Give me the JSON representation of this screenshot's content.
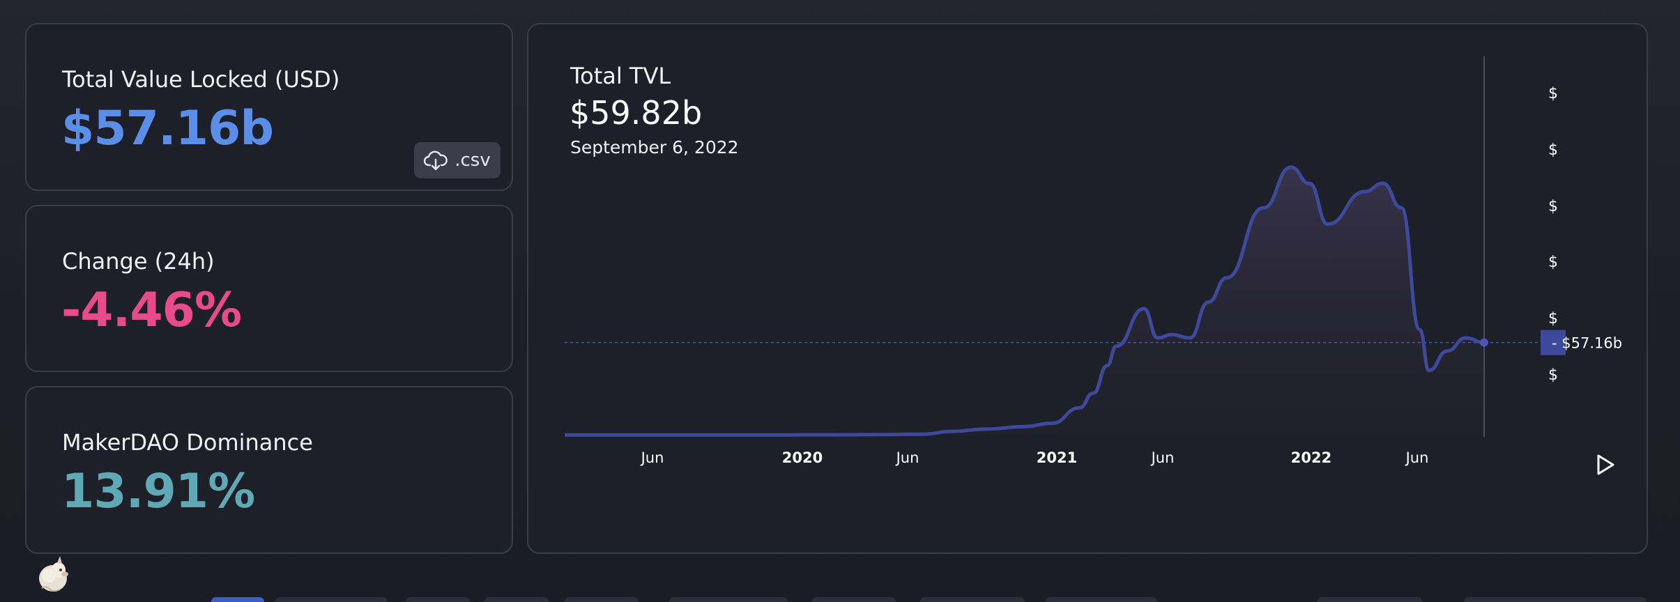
{
  "stats": {
    "tvl": {
      "label": "Total Value Locked (USD)",
      "value": "$57.16b"
    },
    "change": {
      "label": "Change (24h)",
      "value": "-4.46%"
    },
    "dominance": {
      "label": "MakerDAO Dominance",
      "value": "13.91%"
    },
    "csv_button": {
      "label": ".csv",
      "icon": "cloud-download-icon"
    }
  },
  "chart": {
    "title": "Total TVL",
    "hover_value": "$59.82b",
    "hover_date": "September 6, 2022",
    "current_label": "$57.16b",
    "axis_tick_labels": [
      "$",
      "$",
      "$",
      "$",
      "$",
      "$"
    ],
    "play_icon": "play-icon"
  },
  "colors": {
    "tvl_accent": "#5b8ee8",
    "change_accent": "#e84a8c",
    "dominance_accent": "#5fa8b5",
    "line": "#3d4a9c"
  },
  "chart_data": {
    "type": "area",
    "title": "Total TVL",
    "x_tick_labels": [
      "Jun",
      "2020",
      "Jun",
      "2021",
      "Jun",
      "2022",
      "Jun"
    ],
    "x": [
      "2019-01",
      "2019-03",
      "2019-06",
      "2019-09",
      "2020-01",
      "2020-03",
      "2020-06",
      "2020-08",
      "2020-10",
      "2020-11",
      "2020-12",
      "2021-01",
      "2021-02",
      "2021-03",
      "2021-04",
      "2021-05",
      "2021-05b",
      "2021-06",
      "2021-07",
      "2021-08",
      "2021-09",
      "2021-10",
      "2021-11",
      "2021-12",
      "2022-01",
      "2022-02",
      "2022-03",
      "2022-04",
      "2022-05",
      "2022-06",
      "2022-07",
      "2022-08",
      "2022-09"
    ],
    "values": [
      0.3,
      0.3,
      0.3,
      0.3,
      0.4,
      0.5,
      0.8,
      2.5,
      4.0,
      5.5,
      7.5,
      17,
      26,
      43,
      55,
      78,
      60,
      62,
      60,
      82,
      97,
      140,
      165,
      155,
      130,
      150,
      155,
      140,
      65,
      40,
      52,
      60,
      57.16
    ],
    "reference_line": 57.16,
    "hover_date": "September 6, 2022",
    "hover_value": "$59.82b"
  }
}
